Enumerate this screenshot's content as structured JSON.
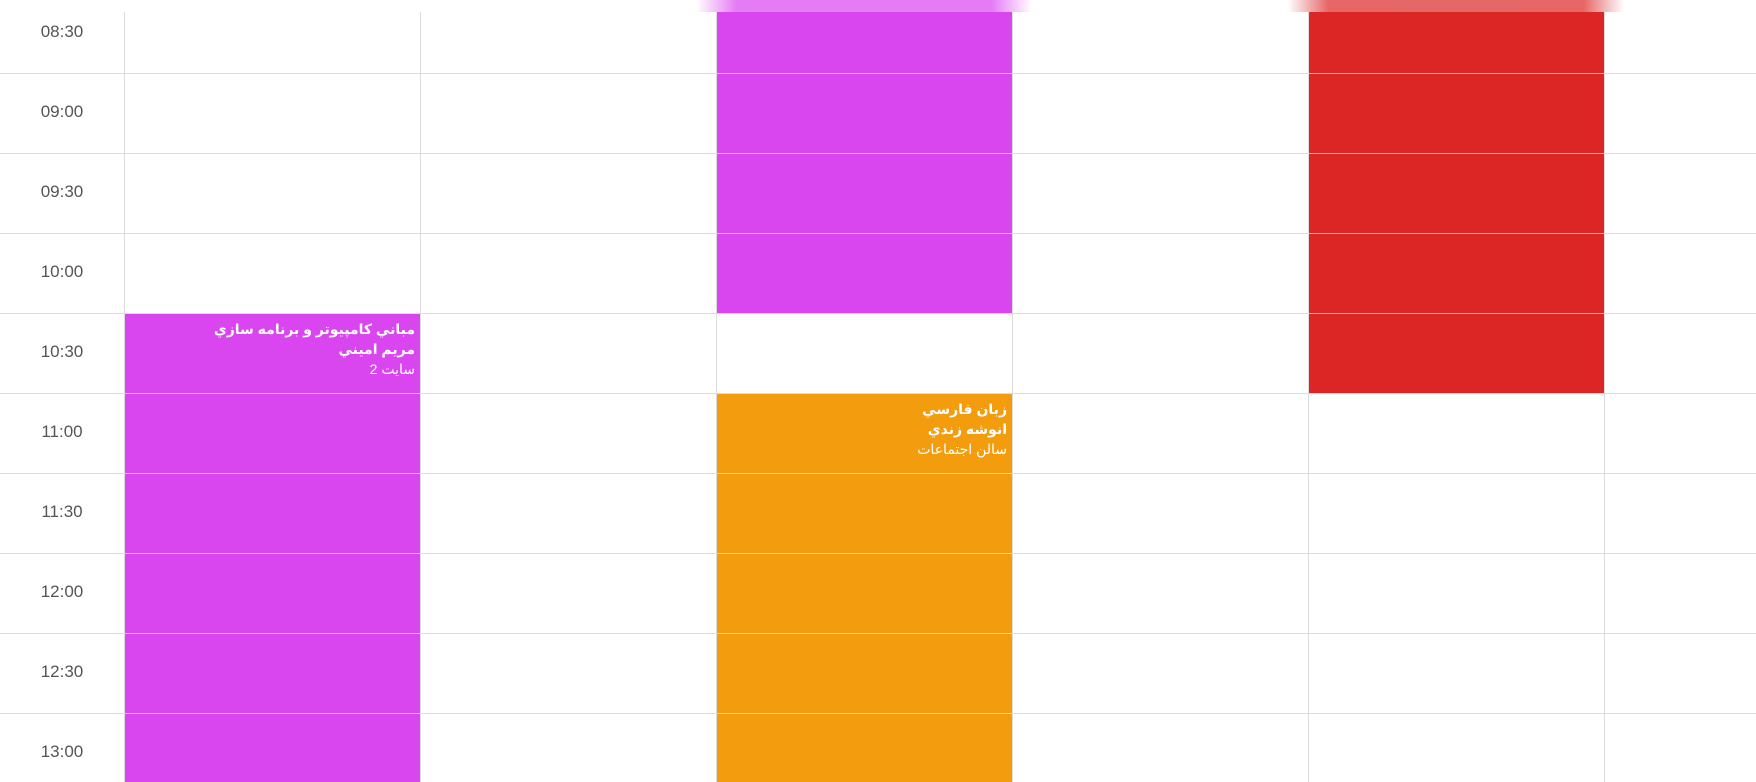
{
  "times": [
    "08:30",
    "09:00",
    "09:30",
    "10:00",
    "10:30",
    "11:00",
    "11:30",
    "12:00",
    "12:30",
    "13:00"
  ],
  "events": [
    {
      "title": "",
      "teacher": "",
      "room": "",
      "color": "#d946ef"
    },
    {
      "title": "",
      "teacher": "",
      "room": "",
      "color": "#dc2626"
    },
    {
      "title": "مباني كامپيوتر و برنامه سازي",
      "teacher": "مريم اميني",
      "room": "سايت 2",
      "color": "#d946ef"
    },
    {
      "title": "زبان فارسي",
      "teacher": "انوشه زندي",
      "room": "سالن اجتماعات",
      "color": "#f39c0e"
    }
  ]
}
